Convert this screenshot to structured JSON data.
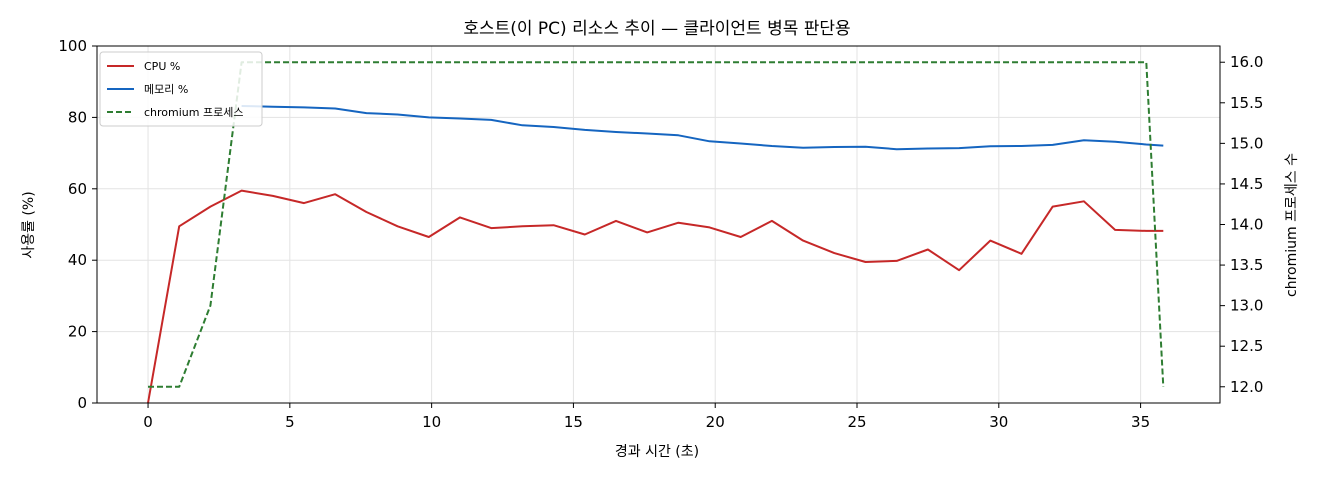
{
  "chart_data": {
    "type": "line",
    "title": "호스트(이 PC) 리소스 추이 — 클라이언트 병목 판단용",
    "xlabel": "경과 시간 (초)",
    "ylabel": "사용률 (%)",
    "y2label": "chromium 프로세스 수",
    "xlim": [
      -1.8,
      37.8
    ],
    "ylim": [
      0,
      100
    ],
    "y2lim": [
      11.8,
      16.2
    ],
    "xticks": [
      0,
      5,
      10,
      15,
      20,
      25,
      30,
      35
    ],
    "yticks": [
      0,
      20,
      40,
      60,
      80,
      100
    ],
    "y2ticks": [
      12.0,
      12.5,
      13.0,
      13.5,
      14.0,
      14.5,
      15.0,
      15.5,
      16.0
    ],
    "grid": true,
    "legend": "top-left",
    "x": [
      0,
      1.1,
      2.2,
      3.3,
      4.4,
      5.5,
      6.6,
      7.7,
      8.8,
      9.9,
      11.0,
      12.1,
      13.2,
      14.3,
      15.4,
      16.5,
      17.6,
      18.7,
      19.8,
      20.9,
      22.0,
      23.1,
      24.2,
      25.3,
      26.4,
      27.5,
      28.6,
      29.7,
      30.8,
      31.9,
      33.0,
      34.1,
      35.2,
      35.8
    ],
    "series": [
      {
        "name": "CPU %",
        "axis": "left",
        "color": "#c62828",
        "style": "solid",
        "values": [
          0,
          49.5,
          55.0,
          59.5,
          58.0,
          56.0,
          58.5,
          53.5,
          49.5,
          46.5,
          52.0,
          49.0,
          49.5,
          49.8,
          47.2,
          51.0,
          47.8,
          50.5,
          49.2,
          46.5,
          51.0,
          45.5,
          42.0,
          39.5,
          39.8,
          43.0,
          37.2,
          45.5,
          41.8,
          55.0,
          56.5,
          48.5,
          48.2,
          48.2
        ]
      },
      {
        "name": "메모리 %",
        "axis": "left",
        "color": "#1565c0",
        "style": "solid",
        "values": [
          null,
          null,
          null,
          83.2,
          83.0,
          82.8,
          82.5,
          81.2,
          80.8,
          80.0,
          79.7,
          79.3,
          77.8,
          77.3,
          76.5,
          75.9,
          75.5,
          75.0,
          73.3,
          72.7,
          72.0,
          71.5,
          71.7,
          71.8,
          71.1,
          71.3,
          71.4,
          71.9,
          72.0,
          72.3,
          73.6,
          73.2,
          72.4,
          72.1
        ]
      },
      {
        "name": "chromium 프로세스",
        "axis": "right",
        "color": "#2e7d32",
        "style": "dashed",
        "values": [
          12,
          12,
          13,
          16,
          16,
          16,
          16,
          16,
          16,
          16,
          16,
          16,
          16,
          16,
          16,
          16,
          16,
          16,
          16,
          16,
          16,
          16,
          16,
          16,
          16,
          16,
          16,
          16,
          16,
          16,
          16,
          16,
          16,
          12
        ]
      }
    ]
  }
}
